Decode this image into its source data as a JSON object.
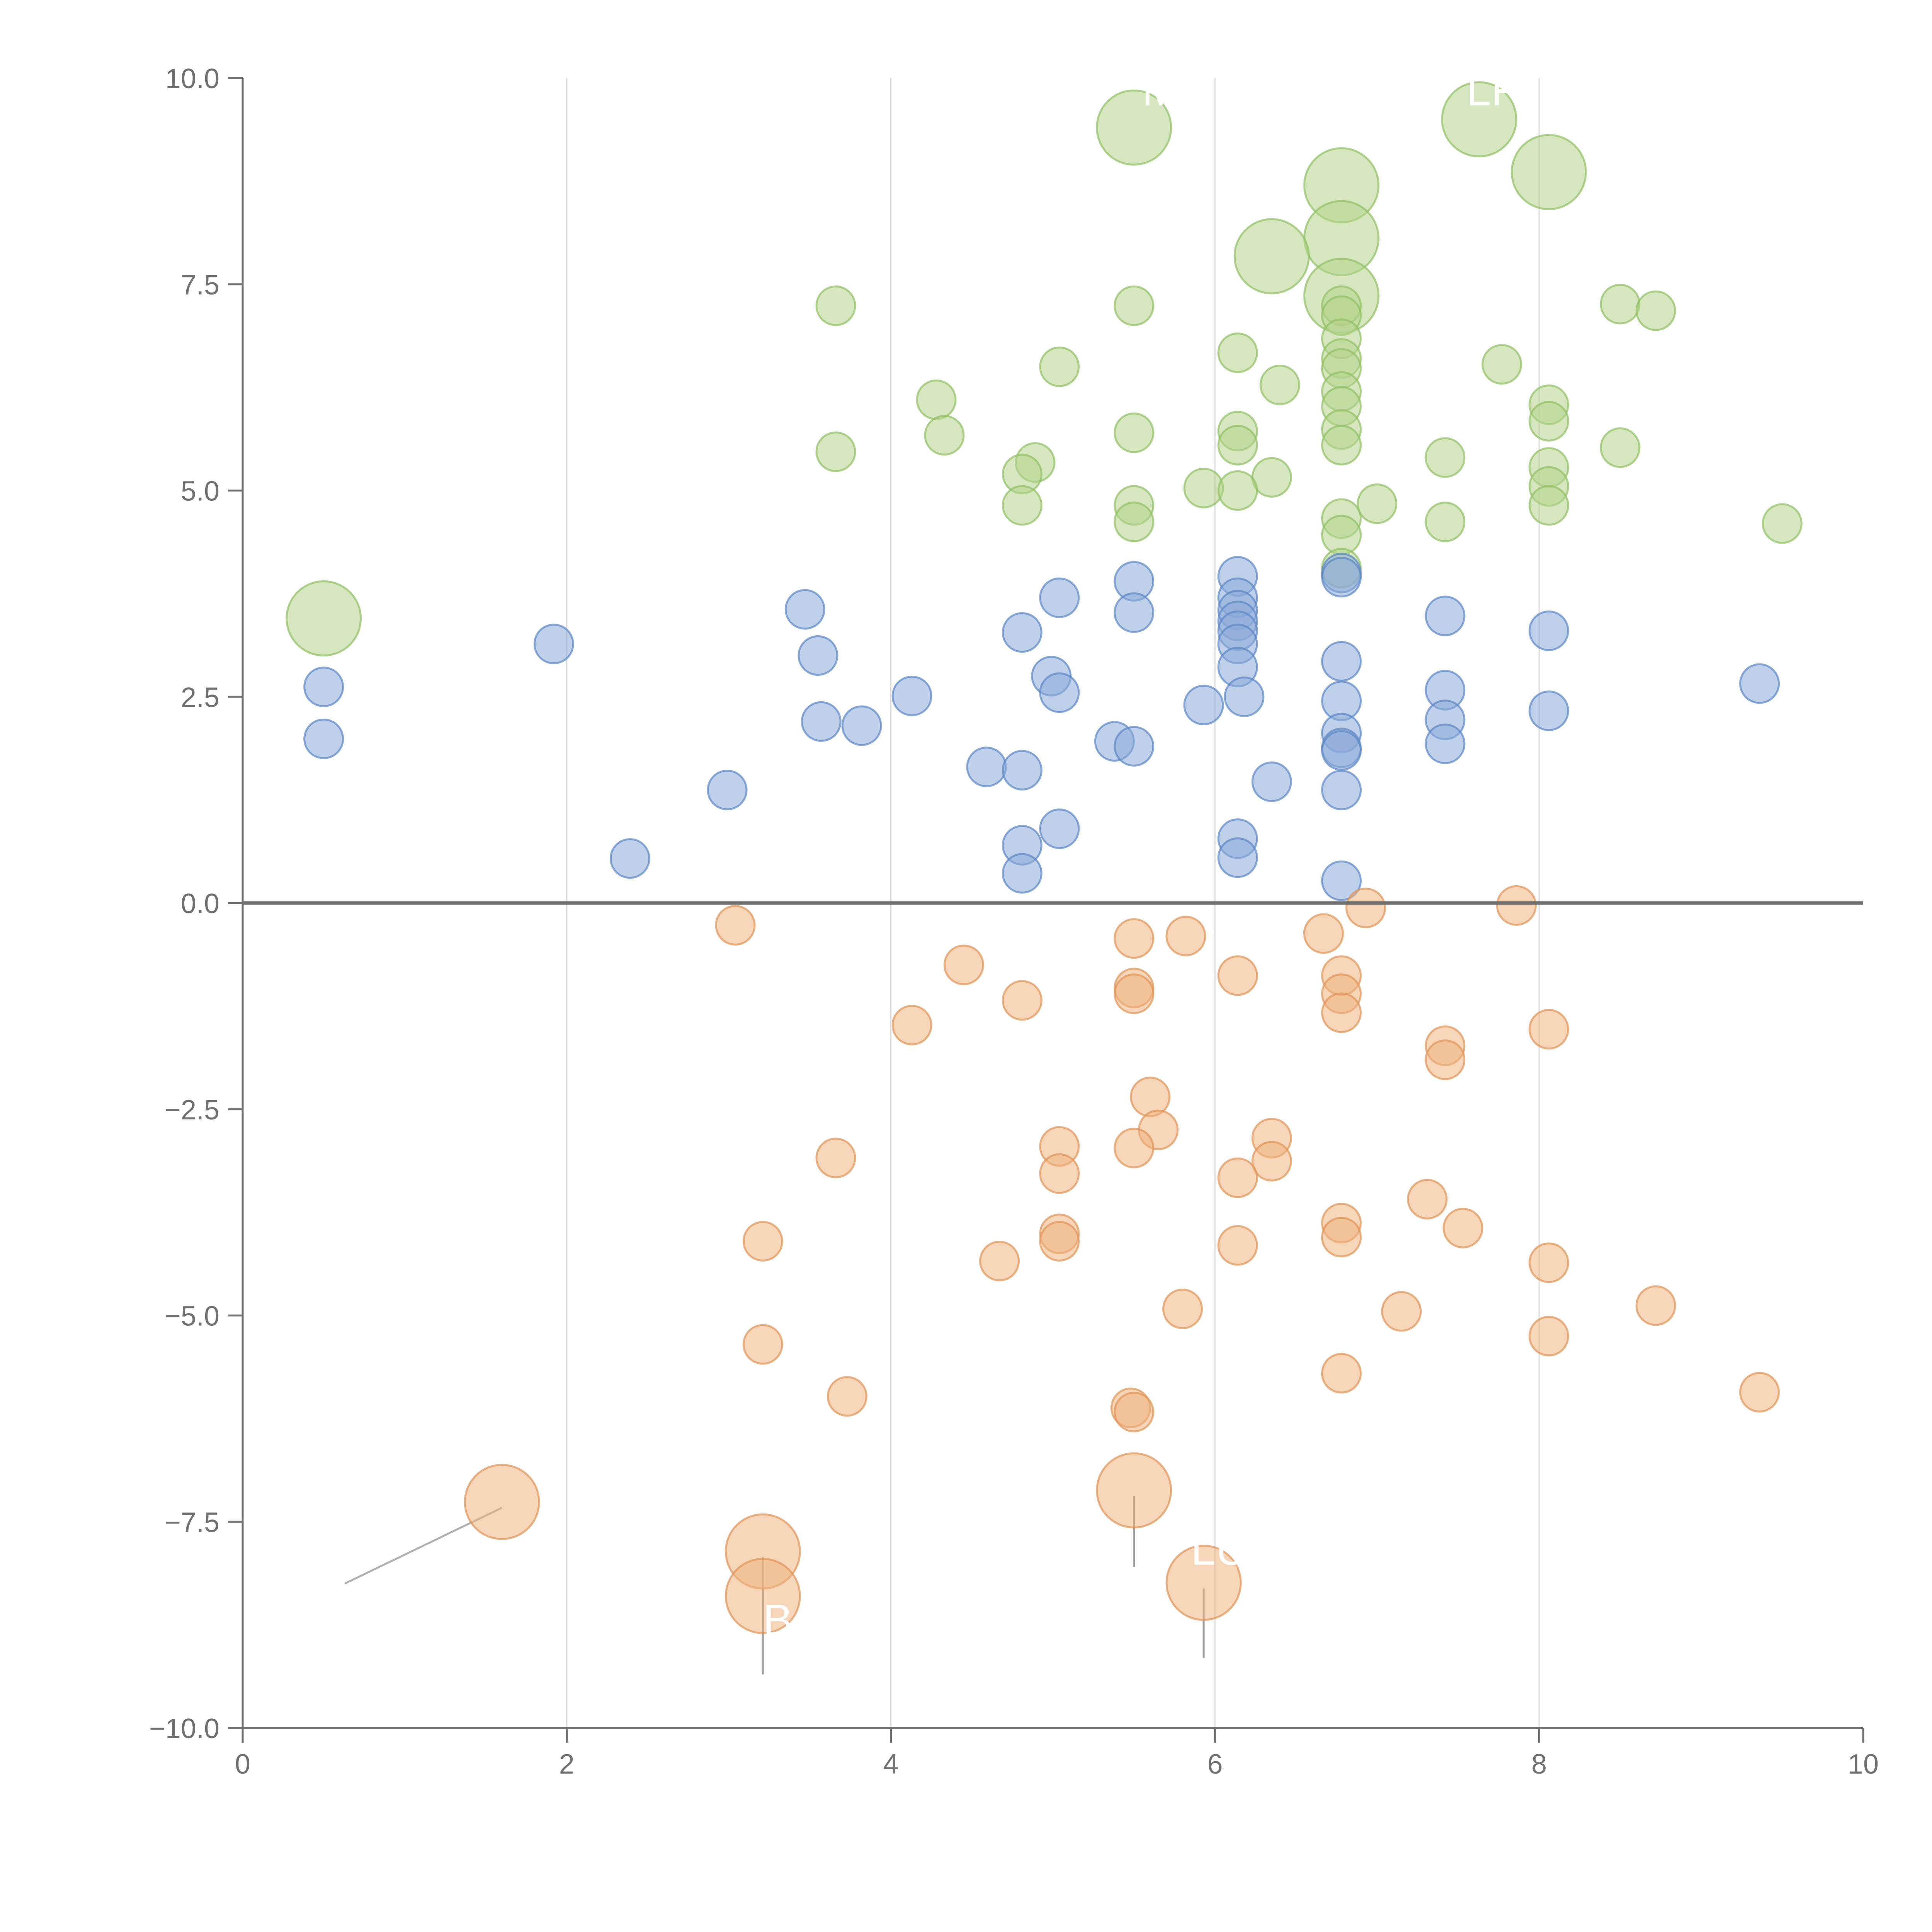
{
  "chart_data": {
    "type": "scatter",
    "title": "",
    "xlabel": "",
    "ylabel": "",
    "xlim": [
      0,
      10
    ],
    "ylim": [
      -10,
      10
    ],
    "grid": "vertical",
    "x_ticks": [
      "0",
      "2",
      "4",
      "6",
      "8",
      "10"
    ],
    "y_ticks": [
      "10.0",
      "7.5",
      "5.0",
      "2.5",
      "0.0",
      "−2.5",
      "−5.0",
      "−7.5",
      "−10.0"
    ],
    "colors": {
      "green": "#b4d38a",
      "green_stroke": "#8fbf63",
      "blue": "#8aa9d9",
      "blue_stroke": "#5b86c4",
      "orange": "#eeb27e",
      "orange_stroke": "#e09355",
      "axis": "#707070",
      "grid": "#d9d9d9"
    },
    "series": [
      {
        "name": "green",
        "color": "green",
        "points": [
          [
            5.5,
            9.4,
            3
          ],
          [
            7.63,
            9.5,
            3
          ],
          [
            6.78,
            8.7,
            3
          ],
          [
            8.06,
            8.86,
            3
          ],
          [
            6.78,
            8.06,
            3
          ],
          [
            6.35,
            7.84,
            3
          ],
          [
            6.78,
            7.36,
            3
          ],
          [
            0.5,
            3.45,
            3
          ],
          [
            3.66,
            7.24,
            1
          ],
          [
            5.5,
            7.24,
            1
          ],
          [
            8.5,
            7.26,
            1
          ],
          [
            8.72,
            7.18,
            1
          ],
          [
            5.04,
            6.5,
            1
          ],
          [
            7.77,
            6.53,
            1
          ],
          [
            6.14,
            6.67,
            1
          ],
          [
            6.4,
            6.28,
            1
          ],
          [
            4.28,
            6.1,
            1
          ],
          [
            4.33,
            5.67,
            1
          ],
          [
            3.66,
            5.47,
            1
          ],
          [
            5.5,
            5.7,
            1
          ],
          [
            4.89,
            5.34,
            1
          ],
          [
            4.81,
            5.2,
            1
          ],
          [
            4.81,
            4.82,
            1
          ],
          [
            6.14,
            5.72,
            1
          ],
          [
            6.14,
            5.55,
            1
          ],
          [
            6.35,
            5.16,
            1
          ],
          [
            5.93,
            5.03,
            1
          ],
          [
            6.14,
            5.0,
            1
          ],
          [
            5.5,
            4.82,
            1
          ],
          [
            5.5,
            4.62,
            1
          ],
          [
            6.78,
            7.24,
            1
          ],
          [
            6.78,
            7.12,
            1
          ],
          [
            6.78,
            6.84,
            1
          ],
          [
            6.78,
            6.6,
            1
          ],
          [
            6.78,
            6.48,
            1
          ],
          [
            6.78,
            6.2,
            1
          ],
          [
            6.78,
            6.02,
            1
          ],
          [
            6.78,
            5.74,
            1
          ],
          [
            6.78,
            5.55,
            1
          ],
          [
            6.78,
            4.66,
            1
          ],
          [
            6.78,
            4.46,
            1
          ],
          [
            6.78,
            4.06,
            1
          ],
          [
            7.0,
            4.84,
            1
          ],
          [
            7.42,
            5.4,
            1
          ],
          [
            7.42,
            4.62,
            1
          ],
          [
            8.06,
            6.04,
            1
          ],
          [
            8.06,
            5.84,
            1
          ],
          [
            8.06,
            5.28,
            1
          ],
          [
            8.06,
            5.05,
            1
          ],
          [
            8.06,
            4.82,
            1
          ],
          [
            8.5,
            5.52,
            1
          ],
          [
            9.5,
            4.6,
            1
          ]
        ]
      },
      {
        "name": "blue",
        "color": "blue",
        "points": [
          [
            0.5,
            2.62,
            1
          ],
          [
            0.5,
            1.99,
            1
          ],
          [
            1.92,
            3.14,
            1
          ],
          [
            2.39,
            0.54,
            1
          ],
          [
            2.99,
            1.37,
            1
          ],
          [
            3.47,
            3.56,
            1
          ],
          [
            3.55,
            3.0,
            1
          ],
          [
            3.57,
            2.2,
            1
          ],
          [
            3.82,
            2.15,
            1
          ],
          [
            4.13,
            2.51,
            1
          ],
          [
            4.59,
            1.65,
            1
          ],
          [
            4.81,
            3.28,
            1
          ],
          [
            4.81,
            1.61,
            1
          ],
          [
            4.81,
            0.7,
            1
          ],
          [
            4.81,
            0.36,
            1
          ],
          [
            4.99,
            2.75,
            1
          ],
          [
            5.04,
            3.7,
            1
          ],
          [
            5.04,
            2.55,
            1
          ],
          [
            5.04,
            0.9,
            1
          ],
          [
            5.38,
            1.96,
            1
          ],
          [
            5.5,
            3.9,
            1
          ],
          [
            5.5,
            3.52,
            1
          ],
          [
            5.5,
            1.9,
            1
          ],
          [
            5.93,
            2.4,
            1
          ],
          [
            6.14,
            3.96,
            1
          ],
          [
            6.14,
            3.7,
            1
          ],
          [
            6.14,
            3.55,
            1
          ],
          [
            6.14,
            3.42,
            1
          ],
          [
            6.14,
            3.3,
            1
          ],
          [
            6.14,
            3.14,
            1
          ],
          [
            6.14,
            2.86,
            1
          ],
          [
            6.18,
            2.5,
            1
          ],
          [
            6.14,
            0.78,
            1
          ],
          [
            6.14,
            0.55,
            1
          ],
          [
            6.35,
            1.47,
            1
          ],
          [
            6.78,
            4.0,
            1
          ],
          [
            6.78,
            3.95,
            1
          ],
          [
            6.78,
            2.93,
            1
          ],
          [
            6.78,
            2.45,
            1
          ],
          [
            6.78,
            2.06,
            1
          ],
          [
            6.78,
            1.88,
            1
          ],
          [
            6.78,
            1.85,
            1
          ],
          [
            6.78,
            1.37,
            1
          ],
          [
            6.78,
            0.27,
            1
          ],
          [
            7.42,
            3.48,
            1
          ],
          [
            7.42,
            2.58,
            1
          ],
          [
            7.42,
            2.22,
            1
          ],
          [
            7.42,
            1.93,
            1
          ],
          [
            8.06,
            3.3,
            1
          ],
          [
            8.06,
            2.33,
            1
          ],
          [
            9.36,
            2.66,
            1
          ]
        ]
      },
      {
        "name": "orange",
        "color": "orange",
        "points": [
          [
            1.6,
            -7.26,
            3
          ],
          [
            3.21,
            -7.86,
            3
          ],
          [
            3.21,
            -8.4,
            3
          ],
          [
            5.5,
            -7.12,
            3
          ],
          [
            5.93,
            -8.24,
            3
          ],
          [
            3.04,
            -0.27,
            1
          ],
          [
            4.45,
            -0.75,
            1
          ],
          [
            4.13,
            -1.48,
            1
          ],
          [
            4.81,
            -1.18,
            1
          ],
          [
            5.5,
            -0.43,
            1
          ],
          [
            5.5,
            -1.03,
            1
          ],
          [
            5.5,
            -1.1,
            1
          ],
          [
            5.82,
            -0.4,
            1
          ],
          [
            6.14,
            -0.88,
            1
          ],
          [
            6.67,
            -0.37,
            1
          ],
          [
            6.93,
            -0.06,
            1
          ],
          [
            7.86,
            -0.03,
            1
          ],
          [
            6.78,
            -0.88,
            1
          ],
          [
            6.78,
            -1.1,
            1
          ],
          [
            6.78,
            -1.33,
            1
          ],
          [
            7.42,
            -1.73,
            1
          ],
          [
            7.42,
            -1.9,
            1
          ],
          [
            8.06,
            -1.53,
            1
          ],
          [
            5.6,
            -2.35,
            1
          ],
          [
            5.65,
            -2.75,
            1
          ],
          [
            5.5,
            -2.97,
            1
          ],
          [
            5.04,
            -2.95,
            1
          ],
          [
            5.04,
            -3.28,
            1
          ],
          [
            3.66,
            -3.09,
            1
          ],
          [
            6.35,
            -2.85,
            1
          ],
          [
            6.35,
            -3.13,
            1
          ],
          [
            6.14,
            -3.33,
            1
          ],
          [
            3.21,
            -4.1,
            1
          ],
          [
            4.67,
            -4.34,
            1
          ],
          [
            5.04,
            -4.01,
            1
          ],
          [
            5.04,
            -4.1,
            1
          ],
          [
            6.14,
            -4.15,
            1
          ],
          [
            6.78,
            -3.88,
            1
          ],
          [
            6.78,
            -4.05,
            1
          ],
          [
            7.31,
            -3.59,
            1
          ],
          [
            7.53,
            -3.94,
            1
          ],
          [
            8.06,
            -4.36,
            1
          ],
          [
            3.21,
            -5.35,
            1
          ],
          [
            3.73,
            -5.98,
            1
          ],
          [
            5.8,
            -4.92,
            1
          ],
          [
            7.15,
            -4.95,
            1
          ],
          [
            8.72,
            -4.88,
            1
          ],
          [
            8.06,
            -5.25,
            1
          ],
          [
            6.78,
            -5.7,
            1
          ],
          [
            5.48,
            -6.12,
            1
          ],
          [
            5.5,
            -6.17,
            1
          ],
          [
            9.36,
            -5.93,
            1
          ]
        ]
      }
    ],
    "annotations": [
      {
        "text": "M",
        "x": 5.55,
        "y": 9.67
      },
      {
        "text": "LF",
        "x": 7.55,
        "y": 9.67
      },
      {
        "text": "LUX",
        "x": 5.85,
        "y": -8.02
      },
      {
        "text": "B",
        "x": 3.21,
        "y": -8.88
      }
    ]
  }
}
